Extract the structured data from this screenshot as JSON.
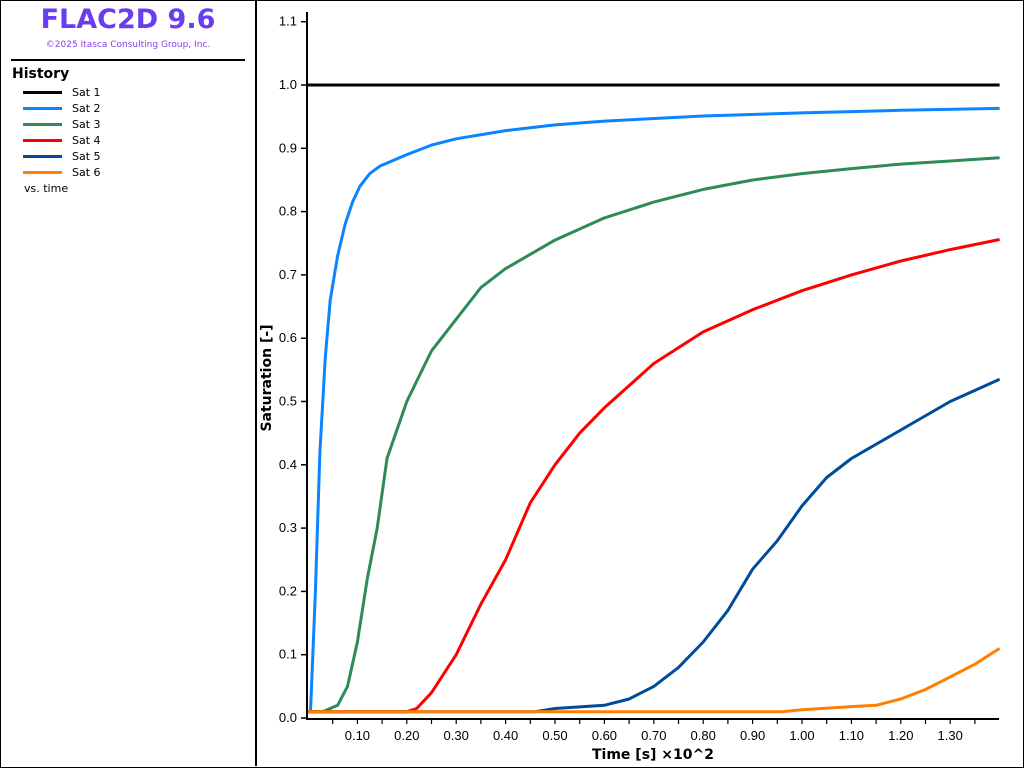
{
  "header": {
    "title": "FLAC2D 9.6",
    "copyright": "©2025 Itasca Consulting Group, Inc."
  },
  "legend": {
    "heading": "History",
    "footer": "vs. time"
  },
  "colors": {
    "title": "#6a3df0",
    "Sat 1": "#000000",
    "Sat 2": "#0a84ff",
    "Sat 3": "#2e8b57",
    "Sat 4": "#ff0000",
    "Sat 5": "#004c99",
    "Sat 6": "#ff8000"
  },
  "chart_data": {
    "type": "line",
    "xlabel": "Time [s] ×10^2",
    "ylabel": "Saturation [-]",
    "xlim": [
      0,
      1.4
    ],
    "ylim": [
      0,
      1.1
    ],
    "xticks": [
      "0.10",
      "0.20",
      "0.30",
      "0.40",
      "0.50",
      "0.60",
      "0.70",
      "0.80",
      "0.90",
      "1.00",
      "1.10",
      "1.20",
      "1.30"
    ],
    "yticks": [
      "0.0",
      "0.1",
      "0.2",
      "0.3",
      "0.4",
      "0.5",
      "0.6",
      "0.7",
      "0.8",
      "0.9",
      "1.0",
      "1.1"
    ],
    "grid": false,
    "legend": "left-panel",
    "series": [
      {
        "name": "Sat 1",
        "color": "#000000",
        "x": [
          0,
          1.4
        ],
        "y": [
          1.0,
          1.0
        ]
      },
      {
        "name": "Sat 2",
        "color": "#0a84ff",
        "x": [
          0,
          0.005,
          0.015,
          0.024,
          0.035,
          0.045,
          0.06,
          0.075,
          0.09,
          0.105,
          0.125,
          0.146,
          0.2,
          0.25,
          0.3,
          0.4,
          0.5,
          0.6,
          0.8,
          1.0,
          1.2,
          1.4
        ],
        "y": [
          0.01,
          0.01,
          0.2,
          0.42,
          0.57,
          0.66,
          0.73,
          0.78,
          0.815,
          0.84,
          0.86,
          0.872,
          0.89,
          0.905,
          0.915,
          0.928,
          0.937,
          0.943,
          0.951,
          0.956,
          0.96,
          0.963
        ]
      },
      {
        "name": "Sat 3",
        "color": "#2e8b57",
        "x": [
          0,
          0.03,
          0.06,
          0.08,
          0.1,
          0.12,
          0.14,
          0.16,
          0.2,
          0.25,
          0.3,
          0.35,
          0.4,
          0.5,
          0.6,
          0.7,
          0.8,
          0.9,
          1.0,
          1.1,
          1.2,
          1.3,
          1.4
        ],
        "y": [
          0.01,
          0.01,
          0.02,
          0.05,
          0.12,
          0.22,
          0.3,
          0.41,
          0.5,
          0.58,
          0.63,
          0.68,
          0.71,
          0.755,
          0.79,
          0.815,
          0.835,
          0.85,
          0.86,
          0.868,
          0.875,
          0.88,
          0.885
        ]
      },
      {
        "name": "Sat 4",
        "color": "#ff0000",
        "x": [
          0,
          0.2,
          0.22,
          0.25,
          0.3,
          0.35,
          0.4,
          0.45,
          0.5,
          0.55,
          0.6,
          0.7,
          0.8,
          0.9,
          1.0,
          1.1,
          1.2,
          1.3,
          1.4
        ],
        "y": [
          0.01,
          0.01,
          0.015,
          0.04,
          0.1,
          0.18,
          0.25,
          0.34,
          0.4,
          0.45,
          0.49,
          0.56,
          0.61,
          0.645,
          0.675,
          0.7,
          0.722,
          0.74,
          0.756
        ]
      },
      {
        "name": "Sat 5",
        "color": "#004c99",
        "x": [
          0,
          0.46,
          0.5,
          0.6,
          0.65,
          0.7,
          0.75,
          0.8,
          0.85,
          0.9,
          0.95,
          1.0,
          1.05,
          1.1,
          1.2,
          1.3,
          1.4
        ],
        "y": [
          0.01,
          0.01,
          0.015,
          0.02,
          0.03,
          0.05,
          0.08,
          0.12,
          0.17,
          0.235,
          0.28,
          0.335,
          0.38,
          0.41,
          0.455,
          0.5,
          0.535
        ]
      },
      {
        "name": "Sat 6",
        "color": "#ff8000",
        "x": [
          0,
          0.96,
          1.0,
          1.1,
          1.15,
          1.2,
          1.25,
          1.3,
          1.35,
          1.4
        ],
        "y": [
          0.01,
          0.01,
          0.013,
          0.018,
          0.02,
          0.03,
          0.045,
          0.065,
          0.085,
          0.11
        ]
      }
    ]
  }
}
